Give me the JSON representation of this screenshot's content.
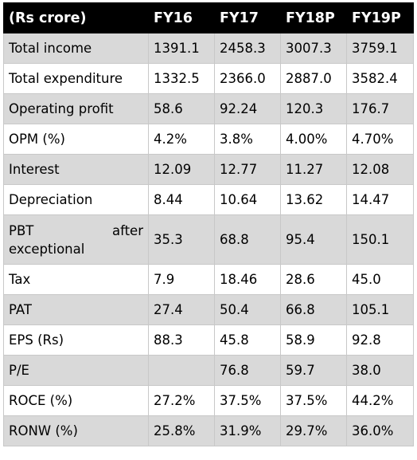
{
  "table": {
    "headers": [
      "(Rs crore)",
      "FY16",
      "FY17",
      "FY18P",
      "FY19P"
    ],
    "rows": [
      {
        "label": "Total income",
        "values": [
          "1391.1",
          "2458.3",
          "3007.3",
          "3759.1"
        ]
      },
      {
        "label": "Total expenditure",
        "values": [
          "1332.5",
          "2366.0",
          "2887.0",
          "3582.4"
        ]
      },
      {
        "label": "Operating profit",
        "values": [
          "58.6",
          "92.24",
          "120.3",
          "176.7"
        ]
      },
      {
        "label": "OPM (%)",
        "values": [
          "4.2%",
          "3.8%",
          "4.00%",
          "4.70%"
        ]
      },
      {
        "label": "Interest",
        "values": [
          "12.09",
          "12.77",
          "11.27",
          "12.08"
        ]
      },
      {
        "label": "Depreciation",
        "values": [
          "8.44",
          "10.64",
          "13.62",
          "14.47"
        ]
      },
      {
        "label_line1a": "PBT",
        "label_line1b": "after",
        "label_line2": "exceptional",
        "values": [
          "35.3",
          "68.8",
          "95.4",
          "150.1"
        ]
      },
      {
        "label": "Tax",
        "values": [
          "7.9",
          "18.46",
          "28.6",
          "45.0"
        ]
      },
      {
        "label": "PAT",
        "values": [
          "27.4",
          "50.4",
          "66.8",
          "105.1"
        ]
      },
      {
        "label": "EPS (Rs)",
        "values": [
          "88.3",
          "45.8",
          "58.9",
          "92.8"
        ]
      },
      {
        "label": "P/E",
        "values": [
          "",
          "76.8",
          "59.7",
          "38.0"
        ]
      },
      {
        "label": "ROCE (%)",
        "values": [
          "27.2%",
          "37.5%",
          "37.5%",
          "44.2%"
        ]
      },
      {
        "label": "RONW (%)",
        "values": [
          "25.8%",
          "31.9%",
          "29.7%",
          "36.0%"
        ]
      }
    ]
  },
  "colors": {
    "header_bg": "#000000",
    "header_text": "#ffffff",
    "shaded_row": "#d9d9d9",
    "plain_row": "#ffffff",
    "border": "#c8c8c8"
  }
}
